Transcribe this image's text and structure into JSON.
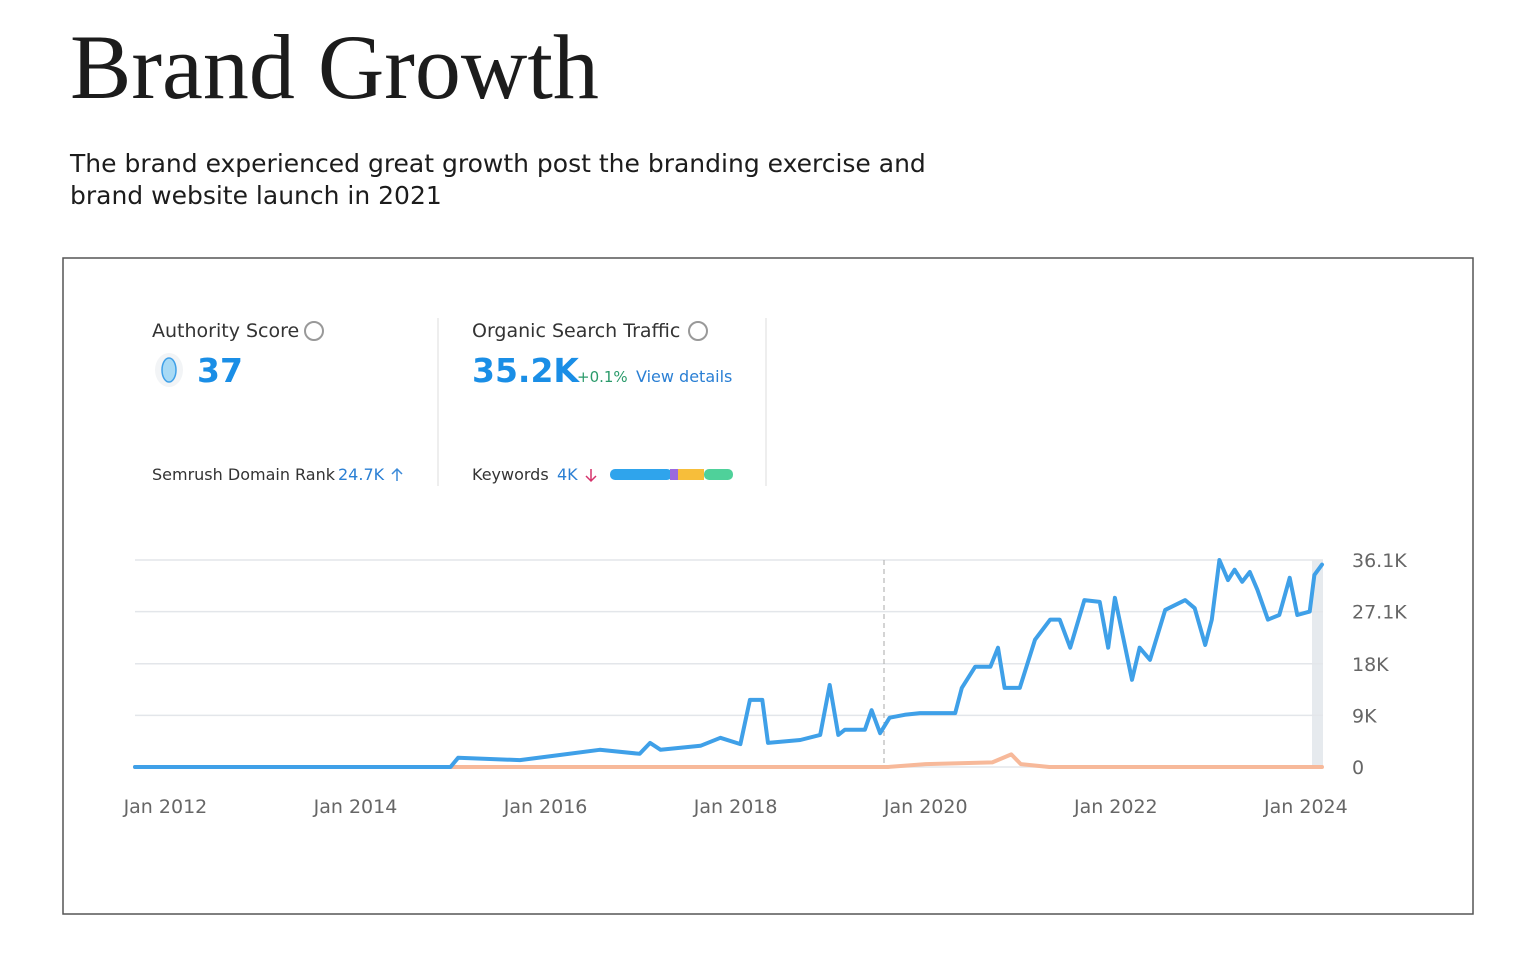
{
  "header": {
    "title": "Brand Growth",
    "subtitle": "The brand experienced great growth post the branding exercise and brand website launch in 2021"
  },
  "widget": {
    "authority": {
      "label": "Authority Score",
      "value": "37",
      "rank_label": "Semrush Domain Rank",
      "rank_value": "24.7K"
    },
    "traffic": {
      "label": "Organic Search Traffic",
      "value": "35.2K",
      "change": "+0.1%",
      "link": "View details",
      "keywords_label": "Keywords",
      "keywords_value": "4K"
    }
  },
  "chart_data": {
    "type": "line",
    "xlim": [
      2011.68,
      2024.18
    ],
    "xticks": [
      {
        "value": 2012,
        "label": "Jan 2012"
      },
      {
        "value": 2014,
        "label": "Jan 2014"
      },
      {
        "value": 2016,
        "label": "Jan 2016"
      },
      {
        "value": 2018,
        "label": "Jan 2018"
      },
      {
        "value": 2020,
        "label": "Jan 2020"
      },
      {
        "value": 2022,
        "label": "Jan 2022"
      },
      {
        "value": 2024,
        "label": "Jan 2024"
      }
    ],
    "ylim": [
      0,
      36.1
    ],
    "yticks": [
      0,
      {
        "value": 9,
        "label": "9K"
      },
      {
        "value": 18,
        "label": "18K"
      },
      {
        "value": 27.1,
        "label": "27.1K"
      },
      {
        "value": 36.1,
        "label": "36.1K"
      }
    ],
    "grid": true,
    "series": [
      {
        "color": "#3fa0e8",
        "x": [
          2011.68,
          2015.0,
          2015.08,
          2015.73,
          2016.15,
          2016.57,
          2016.99,
          2017.1,
          2017.21,
          2017.63,
          2017.84,
          2018.05,
          2018.15,
          2018.28,
          2018.34,
          2018.68,
          2018.89,
          2018.99,
          2019.08,
          2019.15,
          2019.36,
          2019.43,
          2019.52,
          2019.62,
          2019.78,
          2019.94,
          2020.31,
          2020.38,
          2020.52,
          2020.68,
          2020.76,
          2020.83,
          2020.99,
          2021.15,
          2021.31,
          2021.41,
          2021.52,
          2021.67,
          2021.83,
          2021.92,
          2021.99,
          2022.17,
          2022.25,
          2022.36,
          2022.52,
          2022.73,
          2022.83,
          2022.94,
          2023.01,
          2023.09,
          2023.18,
          2023.25,
          2023.33,
          2023.41,
          2023.49,
          2023.6,
          2023.72,
          2023.83,
          2023.91,
          2024.04,
          2024.09,
          2024.17
        ],
        "values": [
          0,
          0,
          1.6,
          1.2,
          2.1,
          3.0,
          2.3,
          4.2,
          3.0,
          3.7,
          5.1,
          4.0,
          11.7,
          11.7,
          4.2,
          4.7,
          5.6,
          14.3,
          5.6,
          6.5,
          6.5,
          9.9,
          5.9,
          8.6,
          9.1,
          9.4,
          9.4,
          13.8,
          17.5,
          17.5,
          20.8,
          13.8,
          13.8,
          22.2,
          25.7,
          25.7,
          20.8,
          29.1,
          28.8,
          20.8,
          29.5,
          15.2,
          20.8,
          18.7,
          27.4,
          29.1,
          27.7,
          21.3,
          25.7,
          36.1,
          32.6,
          34.4,
          32.3,
          34.0,
          30.9,
          25.7,
          26.5,
          33.0,
          26.5,
          27.1,
          33.5,
          35.3
        ]
      },
      {
        "color": "#f7b99a",
        "x": [
          2011.68,
          2019.6,
          2020.0,
          2020.7,
          2020.9,
          2021.0,
          2021.3,
          2024.17
        ],
        "values": [
          0,
          0,
          0.5,
          0.8,
          2.2,
          0.5,
          0,
          0
        ]
      }
    ]
  }
}
